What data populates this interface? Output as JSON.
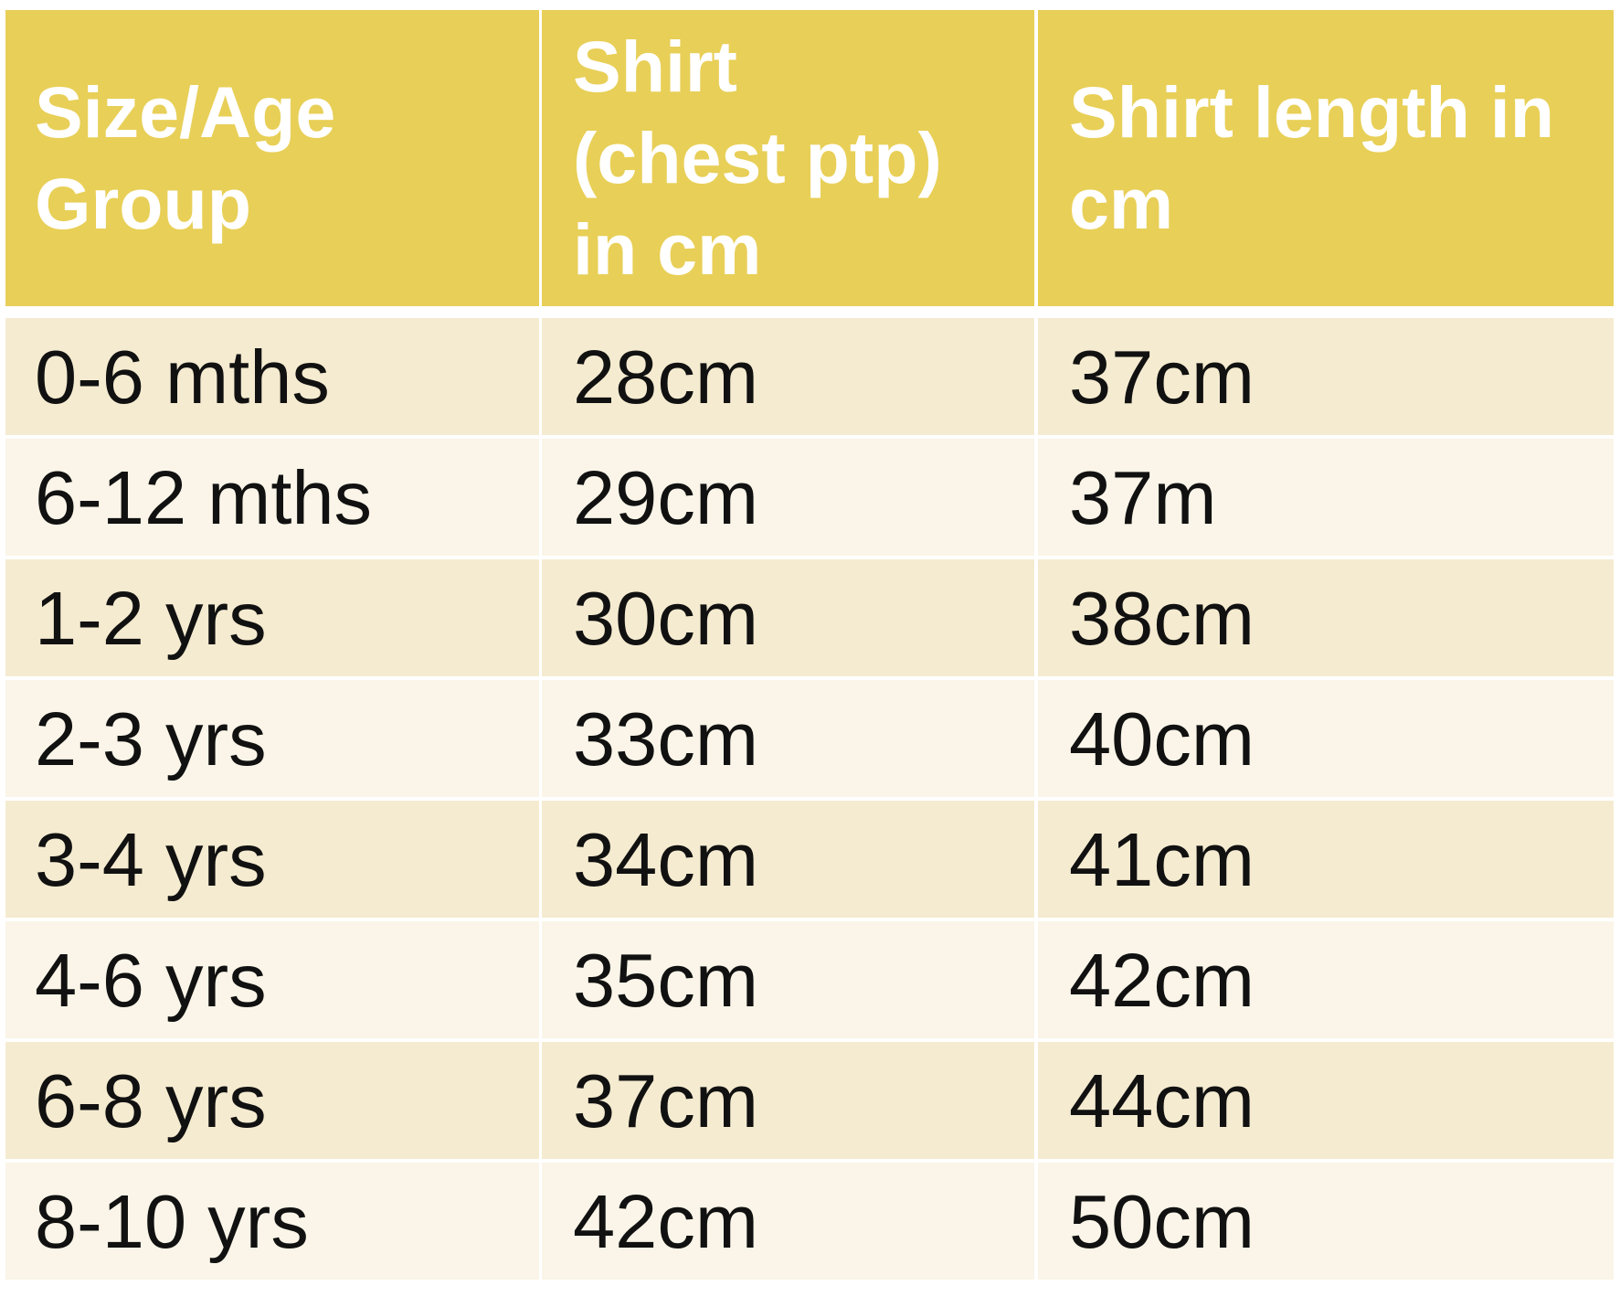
{
  "table": {
    "header": [
      "Size/Age Group",
      "Shirt (chest ptp) in cm",
      "Shirt length in cm"
    ],
    "rows": [
      [
        "0-6 mths",
        "28cm",
        "37cm"
      ],
      [
        "6-12 mths",
        "29cm",
        "37m"
      ],
      [
        "1-2 yrs",
        "30cm",
        "38cm"
      ],
      [
        "2-3 yrs",
        "33cm",
        "40cm"
      ],
      [
        "3-4 yrs",
        "34cm",
        "41cm"
      ],
      [
        "4-6 yrs",
        "35cm",
        "42cm"
      ],
      [
        "6-8 yrs",
        "37cm",
        "44cm"
      ],
      [
        "8-10 yrs",
        "42cm",
        "50cm"
      ]
    ]
  }
}
